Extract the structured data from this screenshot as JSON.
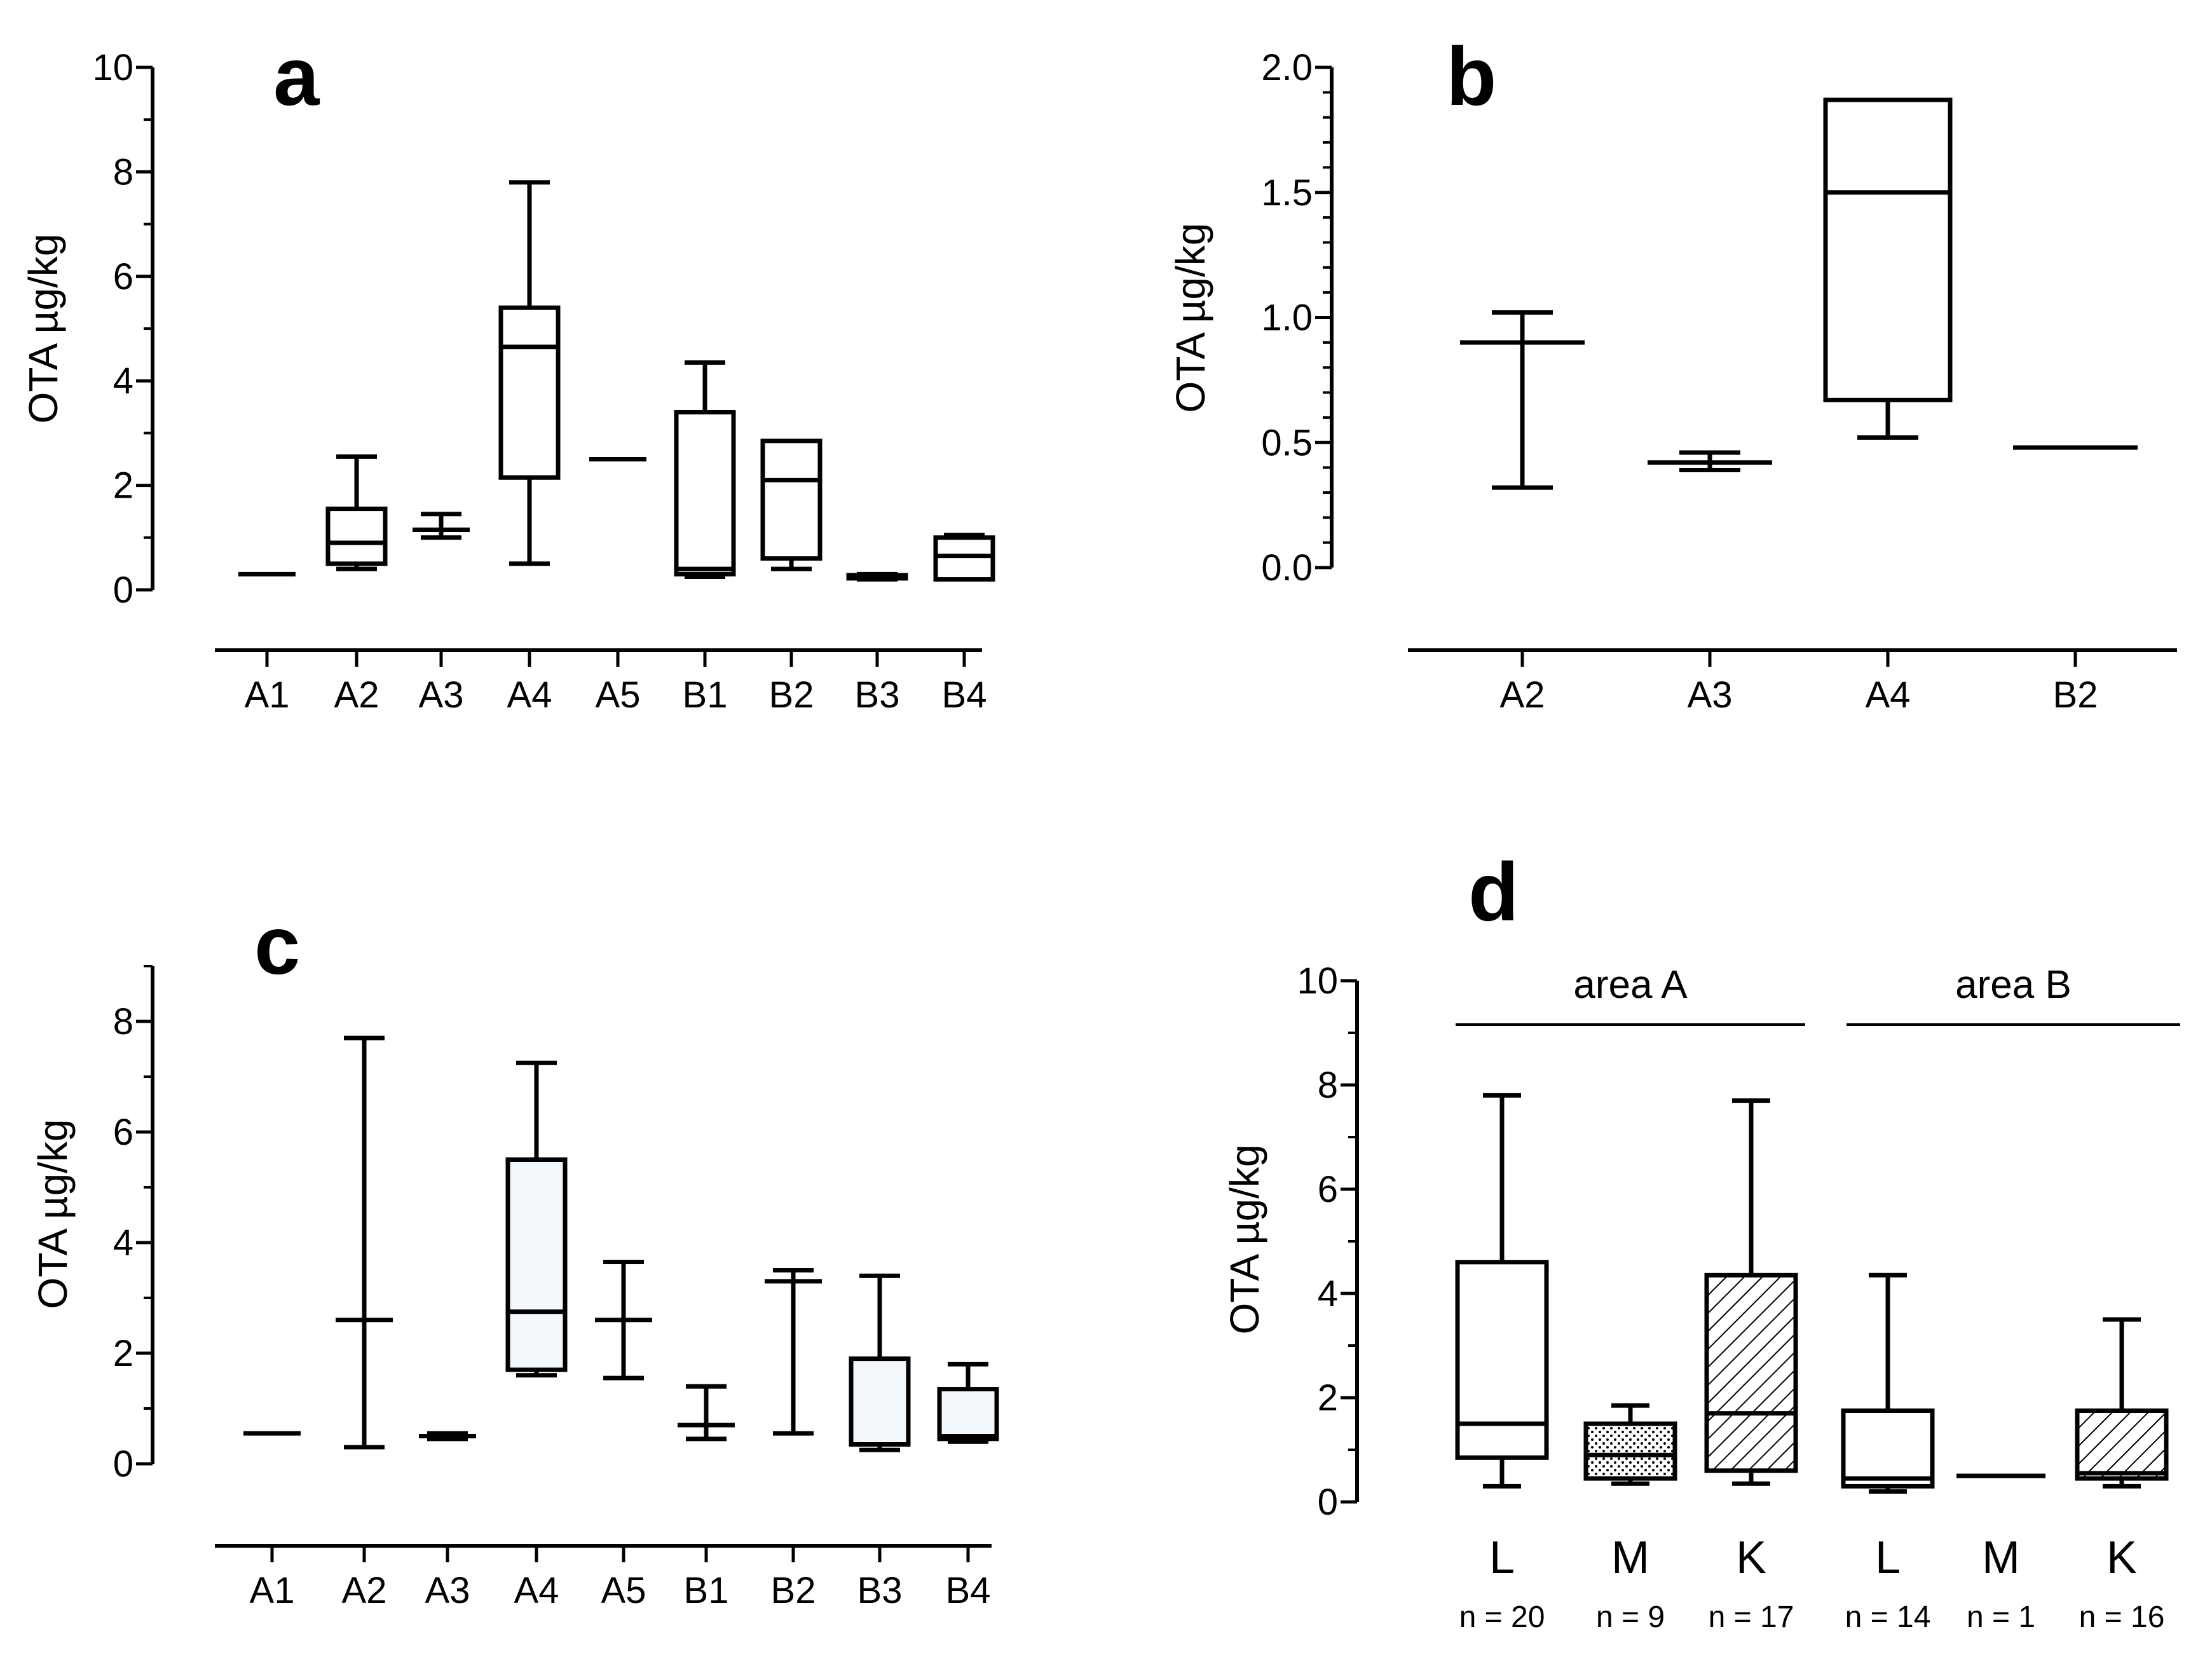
{
  "chart_data": [
    {
      "panel": "a",
      "type": "box",
      "ylabel": "OTA µg/kg",
      "ylim": [
        0,
        10
      ],
      "yticks": [
        0,
        2,
        4,
        6,
        8,
        10
      ],
      "categories": [
        "A1",
        "A2",
        "A3",
        "A4",
        "A5",
        "B1",
        "B2",
        "B3",
        "B4"
      ],
      "boxes": [
        {
          "cat": "A1",
          "min": 0.3,
          "q1": 0.3,
          "median": 0.3,
          "q3": 0.3,
          "max": 0.3
        },
        {
          "cat": "A2",
          "min": 0.4,
          "q1": 0.5,
          "median": 0.9,
          "q3": 1.55,
          "max": 2.55
        },
        {
          "cat": "A3",
          "min": 1.0,
          "q1": 1.15,
          "median": 1.15,
          "q3": 1.15,
          "max": 1.45
        },
        {
          "cat": "A4",
          "min": 0.5,
          "q1": 2.15,
          "median": 4.65,
          "q3": 5.4,
          "max": 7.8
        },
        {
          "cat": "A5",
          "min": 2.5,
          "q1": 2.5,
          "median": 2.5,
          "q3": 2.5,
          "max": 2.5
        },
        {
          "cat": "B1",
          "min": 0.25,
          "q1": 0.3,
          "median": 0.4,
          "q3": 3.4,
          "max": 4.35
        },
        {
          "cat": "B2",
          "min": 0.4,
          "q1": 0.6,
          "median": 2.1,
          "q3": 2.85,
          "max": 2.85
        },
        {
          "cat": "B3",
          "min": 0.2,
          "q1": 0.22,
          "median": 0.25,
          "q3": 0.28,
          "max": 0.3
        },
        {
          "cat": "B4",
          "min": 0.2,
          "q1": 0.2,
          "median": 0.65,
          "q3": 1.0,
          "max": 1.05
        }
      ]
    },
    {
      "panel": "b",
      "type": "box",
      "ylabel": "OTA µg/kg",
      "ylim": [
        0,
        2
      ],
      "yticks": [
        0.0,
        0.5,
        1.0,
        1.5,
        2.0
      ],
      "ytick_labels": [
        "0.0",
        "0.5",
        "1.0",
        "1.5",
        "2.0"
      ],
      "categories": [
        "A2",
        "A3",
        "A4",
        "B2"
      ],
      "boxes": [
        {
          "cat": "A2",
          "min": 0.32,
          "q1": 0.9,
          "median": 0.9,
          "q3": 0.9,
          "max": 1.02
        },
        {
          "cat": "A3",
          "min": 0.39,
          "q1": 0.42,
          "median": 0.42,
          "q3": 0.42,
          "max": 0.46
        },
        {
          "cat": "A4",
          "min": 0.52,
          "q1": 0.67,
          "median": 1.5,
          "q3": 1.87,
          "max": 1.87
        },
        {
          "cat": "B2",
          "min": 0.48,
          "q1": 0.48,
          "median": 0.48,
          "q3": 0.48,
          "max": 0.48
        }
      ]
    },
    {
      "panel": "c",
      "type": "box",
      "ylabel": "OTA µg/kg",
      "ylim": [
        0,
        9
      ],
      "yticks": [
        0,
        2,
        4,
        6,
        8
      ],
      "categories": [
        "A1",
        "A2",
        "A3",
        "A4",
        "A5",
        "B1",
        "B2",
        "B3",
        "B4"
      ],
      "boxes": [
        {
          "cat": "A1",
          "min": 0.55,
          "q1": 0.55,
          "median": 0.55,
          "q3": 0.55,
          "max": 0.55
        },
        {
          "cat": "A2",
          "min": 0.3,
          "q1": 2.6,
          "median": 2.6,
          "q3": 2.6,
          "max": 7.7
        },
        {
          "cat": "A3",
          "min": 0.45,
          "q1": 0.5,
          "median": 0.5,
          "q3": 0.5,
          "max": 0.55
        },
        {
          "cat": "A4",
          "min": 1.6,
          "q1": 1.7,
          "median": 2.75,
          "q3": 5.5,
          "max": 7.25
        },
        {
          "cat": "A5",
          "min": 1.55,
          "q1": 2.6,
          "median": 2.6,
          "q3": 2.6,
          "max": 3.65
        },
        {
          "cat": "B1",
          "min": 0.45,
          "q1": 0.7,
          "median": 0.7,
          "q3": 0.7,
          "max": 1.4
        },
        {
          "cat": "B2",
          "min": 0.55,
          "q1": 3.3,
          "median": 3.3,
          "q3": 3.3,
          "max": 3.5
        },
        {
          "cat": "B3",
          "min": 0.25,
          "q1": 0.35,
          "median": 0.35,
          "q3": 1.9,
          "max": 3.4
        },
        {
          "cat": "B4",
          "min": 0.4,
          "q1": 0.45,
          "median": 0.5,
          "q3": 1.35,
          "max": 1.8
        }
      ]
    },
    {
      "panel": "d",
      "type": "box",
      "ylabel": "OTA µg/kg",
      "ylim": [
        0,
        10
      ],
      "yticks": [
        0,
        2,
        4,
        6,
        8,
        10
      ],
      "groups": [
        {
          "label": "area A",
          "categories": [
            "L",
            "M",
            "K"
          ]
        },
        {
          "label": "area B",
          "categories": [
            "L",
            "M",
            "K"
          ]
        }
      ],
      "categories": [
        "L",
        "M",
        "K",
        "L",
        "M",
        "K"
      ],
      "n_labels": [
        "n = 20",
        "n = 9",
        "n = 17",
        "n = 14",
        "n = 1",
        "n = 16"
      ],
      "boxes": [
        {
          "cat": "L",
          "fill": "white",
          "min": 0.3,
          "q1": 0.85,
          "median": 1.5,
          "q3": 4.6,
          "max": 7.8
        },
        {
          "cat": "M",
          "fill": "dots",
          "min": 0.35,
          "q1": 0.45,
          "median": 0.9,
          "q3": 1.5,
          "max": 1.85
        },
        {
          "cat": "K",
          "fill": "hatch",
          "min": 0.35,
          "q1": 0.6,
          "median": 1.7,
          "q3": 4.35,
          "max": 7.7
        },
        {
          "cat": "L",
          "fill": "white",
          "min": 0.2,
          "q1": 0.3,
          "median": 0.45,
          "q3": 1.75,
          "max": 4.35
        },
        {
          "cat": "M",
          "fill": "white",
          "min": 0.5,
          "q1": 0.5,
          "median": 0.5,
          "q3": 0.5,
          "max": 0.5
        },
        {
          "cat": "K",
          "fill": "hatch",
          "min": 0.3,
          "q1": 0.45,
          "median": 0.55,
          "q3": 1.75,
          "max": 3.5
        }
      ]
    }
  ],
  "colors": {
    "line": "#000000",
    "c_box_fill": "#f3f8fd",
    "background": "#ffffff"
  }
}
